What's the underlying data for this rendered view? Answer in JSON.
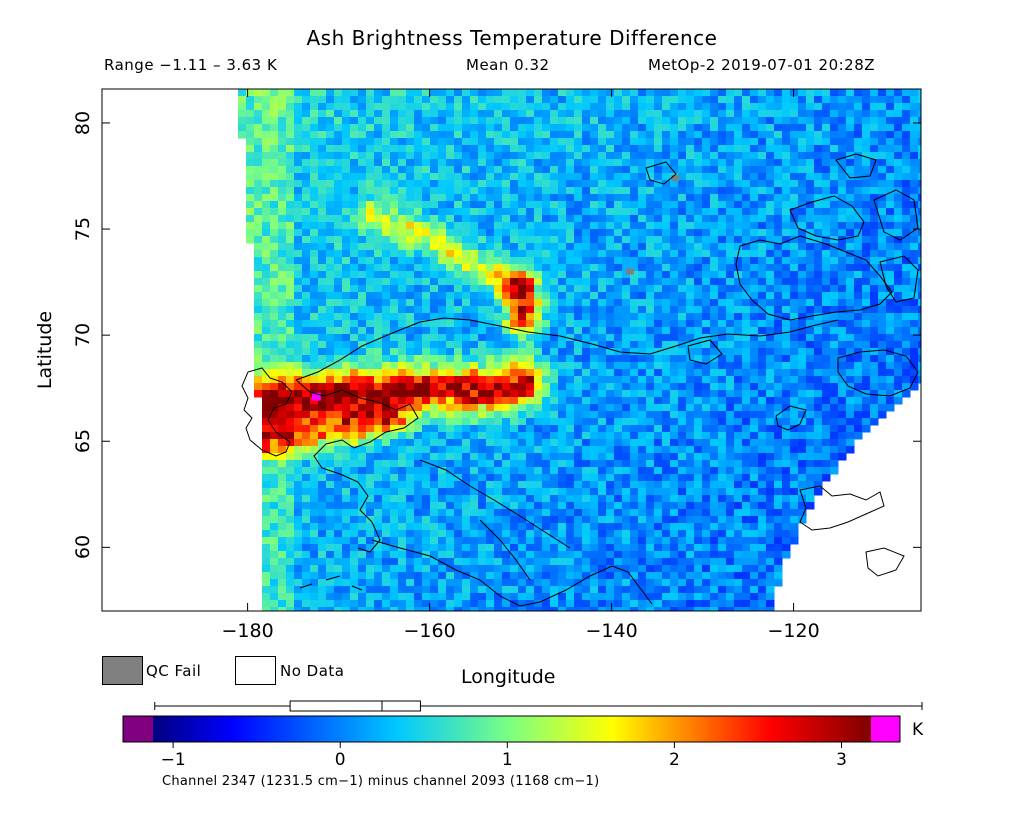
{
  "chart_data": {
    "type": "heatmap",
    "title": "Ash Brightness Temperature Difference",
    "range_text": "Range −1.11 – 3.63 K",
    "mean_text": "Mean 0.32",
    "satellite_text": "MetOp-2 2019-07-01 20:28Z",
    "xlabel": "Longitude",
    "ylabel": "Latitude",
    "xlim": [
      -196,
      -106
    ],
    "ylim": [
      57,
      81.6
    ],
    "x_ticks": [
      {
        "value": -180,
        "label": "−180"
      },
      {
        "value": -160,
        "label": "−160"
      },
      {
        "value": -140,
        "label": "−140"
      },
      {
        "value": -120,
        "label": "−120"
      }
    ],
    "y_ticks": [
      {
        "value": 60,
        "label": "60"
      },
      {
        "value": 65,
        "label": "65"
      },
      {
        "value": 70,
        "label": "70"
      },
      {
        "value": 75,
        "label": "75"
      },
      {
        "value": 80,
        "label": "80"
      }
    ],
    "legend": [
      {
        "key": "qc",
        "label": "QC Fail",
        "color": "#808080"
      },
      {
        "key": "nodata",
        "label": "No Data",
        "color": "#ffffff"
      }
    ],
    "colorbar": {
      "min": -1.3,
      "max": 3.35,
      "unit": "K",
      "under_color": "#800080",
      "over_color": "#ff00ff",
      "ticks": [
        {
          "value": -1,
          "label": "−1"
        },
        {
          "value": 0,
          "label": "0"
        },
        {
          "value": 1,
          "label": "1"
        },
        {
          "value": 2,
          "label": "2"
        },
        {
          "value": 3,
          "label": "3"
        }
      ],
      "box_range": [
        -0.3,
        0.48
      ],
      "box_median": 0.25,
      "whisker_range": [
        -1.11,
        3.63
      ],
      "caption": "Channel 2347 (1231.5 cm−1) minus channel 2093 (1168 cm−1)"
    },
    "plume_features": [
      {
        "name": "main plume",
        "points": [
          [
            -178,
            66.8
          ],
          [
            -172,
            67.1
          ],
          [
            -166,
            67.4
          ],
          [
            -160,
            67.4
          ],
          [
            -154,
            67.4
          ],
          [
            -150,
            67.7
          ]
        ],
        "value": 2.8
      },
      {
        "name": "southern arm",
        "points": [
          [
            -178,
            65.0
          ],
          [
            -174,
            65.3
          ],
          [
            -170,
            65.6
          ],
          [
            -164,
            66.0
          ]
        ],
        "value": 1.8
      },
      {
        "name": "northern streak",
        "points": [
          [
            -150,
            72.3
          ],
          [
            -149.5,
            71.5
          ],
          [
            -149.8,
            70.8
          ]
        ],
        "value": 2.4
      },
      {
        "name": "northern arc",
        "points": [
          [
            -166,
            75.6
          ],
          [
            -160,
            74.6
          ],
          [
            -156,
            73.6
          ],
          [
            -151,
            72.3
          ]
        ],
        "value": 1.1
      }
    ],
    "qc_fail_points": [
      [
        -133,
        77.4
      ],
      [
        -138,
        73.0
      ]
    ],
    "magenta_point": [
      -172.5,
      67.1
    ]
  }
}
